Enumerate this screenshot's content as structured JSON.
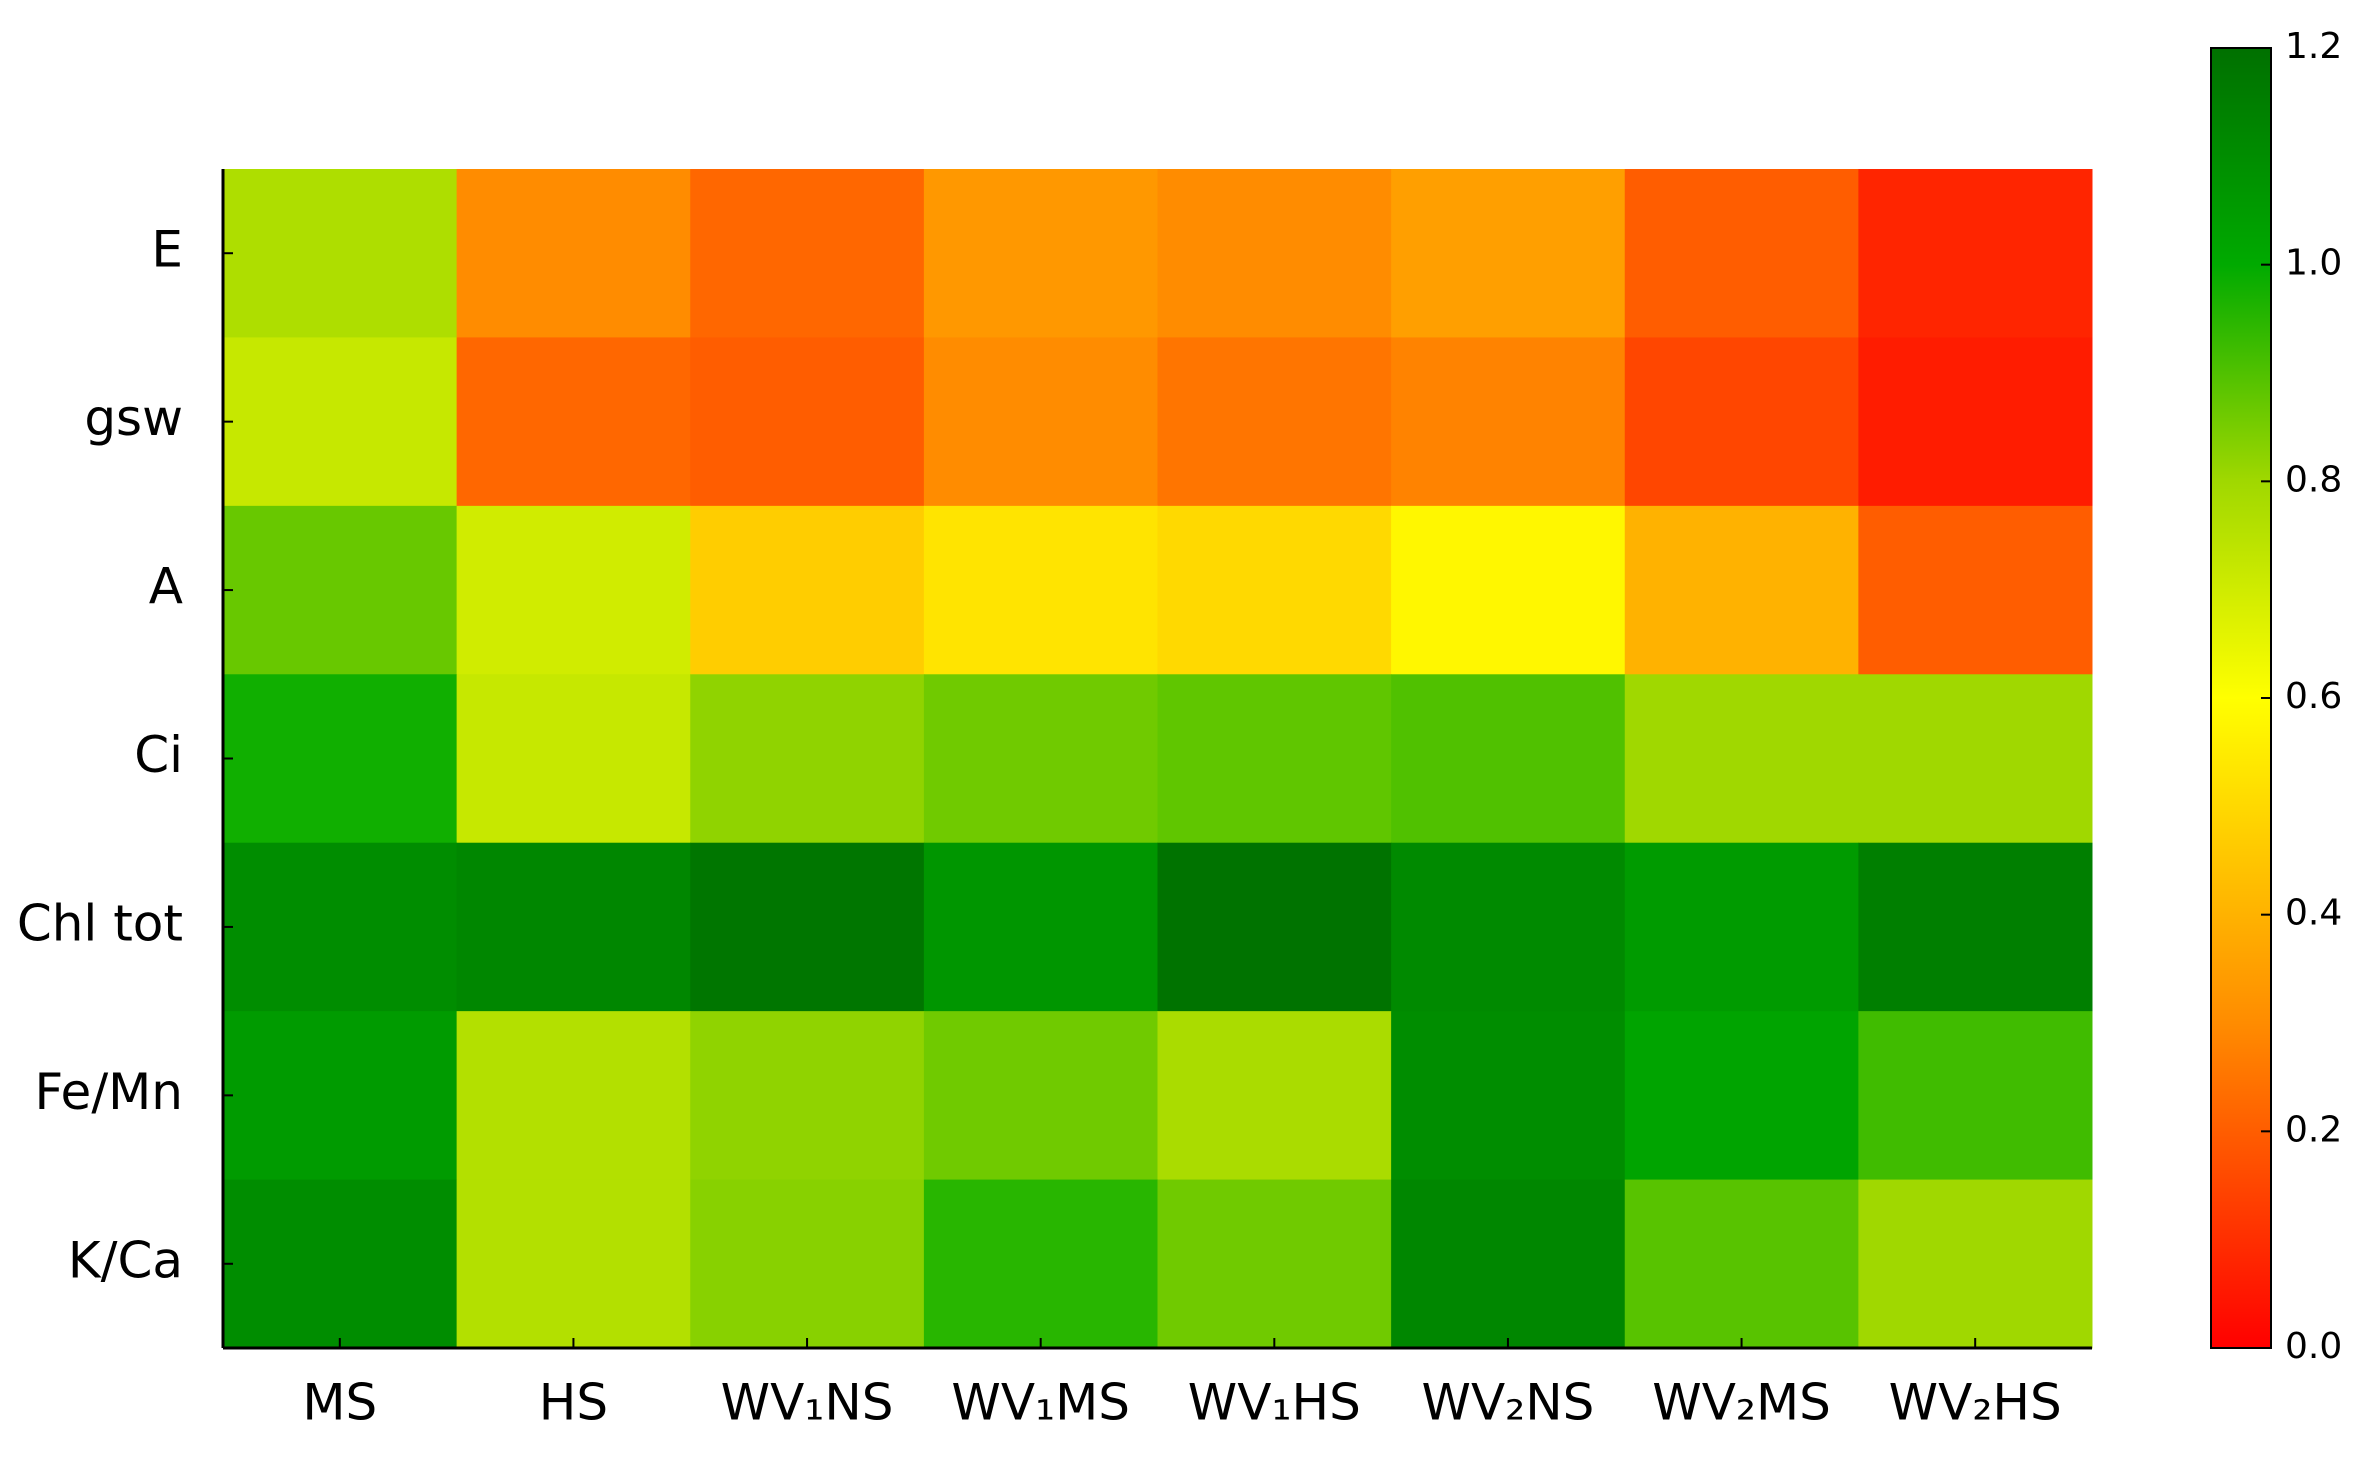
{
  "chart_data": {
    "type": "heatmap",
    "x": [
      "MS",
      "HS",
      "WV₁NS",
      "WV₁MS",
      "WV₁HS",
      "WV₂NS",
      "WV₂MS",
      "WV₂HS"
    ],
    "y": [
      "E",
      "gsw",
      "A",
      "Ci",
      "Chl tot",
      "Fe/Mn",
      "K/Ca"
    ],
    "z": [
      [
        0.77,
        0.3,
        0.22,
        0.33,
        0.3,
        0.35,
        0.2,
        0.08
      ],
      [
        0.72,
        0.22,
        0.2,
        0.3,
        0.25,
        0.28,
        0.15,
        0.06
      ],
      [
        0.87,
        0.7,
        0.47,
        0.53,
        0.5,
        0.58,
        0.4,
        0.2
      ],
      [
        0.98,
        0.72,
        0.82,
        0.86,
        0.88,
        0.9,
        0.8,
        0.8
      ],
      [
        1.1,
        1.12,
        1.18,
        1.07,
        1.19,
        1.11,
        1.05,
        1.15
      ],
      [
        1.05,
        0.76,
        0.82,
        0.86,
        0.78,
        1.1,
        1.02,
        0.92
      ],
      [
        1.1,
        0.76,
        0.83,
        0.95,
        0.86,
        1.12,
        0.89,
        0.8
      ]
    ],
    "colorscale": [
      [
        0,
        "#ff0000"
      ],
      [
        0.3,
        "#ff8c00"
      ],
      [
        0.6,
        "#ffff00"
      ],
      [
        0.8,
        "#a0d800"
      ],
      [
        1.0,
        "#00aa00"
      ],
      [
        1.2,
        "#007000"
      ]
    ],
    "clim": [
      0,
      1.2
    ],
    "cticks": [
      {
        "value": 0,
        "label": "0.0"
      },
      0.2,
      0.4,
      0.6,
      0.8,
      {
        "value": 1,
        "label": "1.0"
      },
      1.2
    ]
  }
}
